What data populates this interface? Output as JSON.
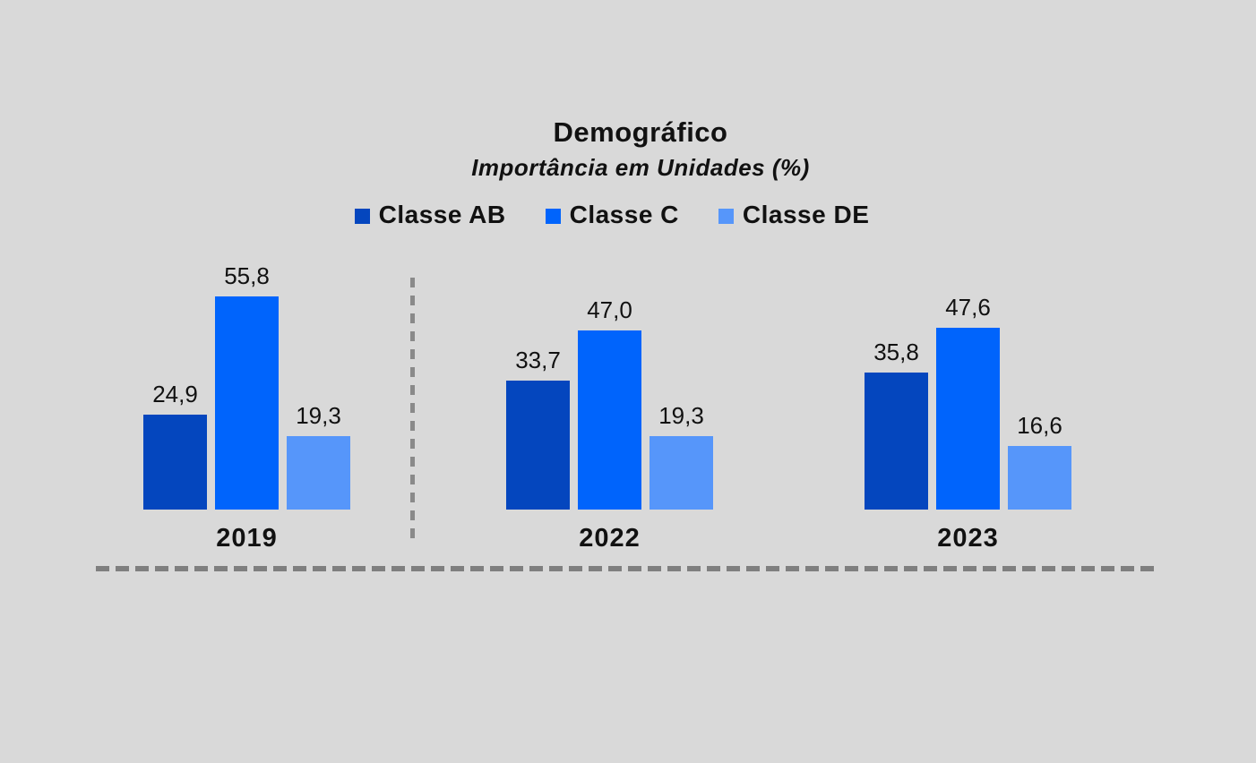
{
  "background_color": "#D9D9D9",
  "text_color": "#111111",
  "divider_color": "#848484",
  "chart_data": {
    "type": "bar",
    "title": "Demográfico",
    "subtitle": "Importância em Unidades (%)",
    "categories": [
      "2019",
      "2022",
      "2023"
    ],
    "series": [
      {
        "name": "Classe AB",
        "color": "#0446BE",
        "values": [
          24.9,
          33.7,
          35.8
        ],
        "labels": [
          "24,9",
          "33,7",
          "35,8"
        ]
      },
      {
        "name": "Classe C",
        "color": "#0064FC",
        "values": [
          55.8,
          47.0,
          47.6
        ],
        "labels": [
          "55,8",
          "47,0",
          "47,6"
        ]
      },
      {
        "name": "Classe DE",
        "color": "#5696FA",
        "values": [
          19.3,
          19.3,
          16.6
        ],
        "labels": [
          "19,3",
          "19,3",
          "16,6"
        ]
      }
    ],
    "ylim": [
      0,
      60
    ],
    "grid": false,
    "legend_position": "top",
    "value_labels_shown": true,
    "decimal_separator": ","
  }
}
